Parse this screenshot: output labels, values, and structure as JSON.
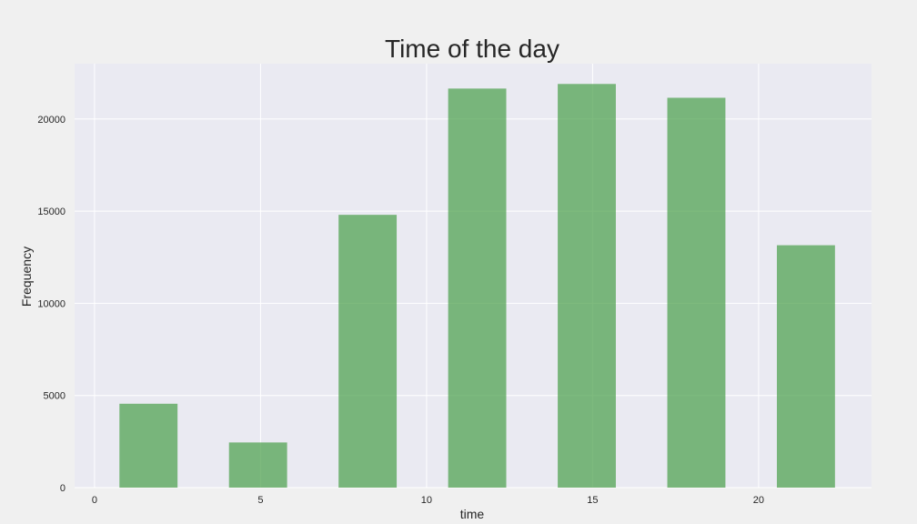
{
  "colors": {
    "background": "#f0f0f0",
    "plot_background": "#eaeaf2",
    "grid": "#ffffff",
    "bar": "#4ca14c"
  },
  "chart_data": {
    "type": "bar",
    "title": "Time of the day",
    "xlabel": "time",
    "ylabel": "Frequency",
    "xlim": [
      -0.6,
      23.4
    ],
    "ylim": [
      0,
      23000
    ],
    "xticks": [
      0,
      5,
      10,
      15,
      20
    ],
    "yticks": [
      0,
      5000,
      10000,
      15000,
      20000
    ],
    "grid": true,
    "legend": "none",
    "bins": [
      {
        "x0": 0.75,
        "x1": 2.5,
        "value": 4550
      },
      {
        "x0": 4.05,
        "x1": 5.8,
        "value": 2450
      },
      {
        "x0": 7.35,
        "x1": 9.1,
        "value": 14800
      },
      {
        "x0": 10.65,
        "x1": 12.4,
        "value": 21650
      },
      {
        "x0": 13.95,
        "x1": 15.7,
        "value": 21900
      },
      {
        "x0": 17.25,
        "x1": 19.0,
        "value": 21150
      },
      {
        "x0": 20.55,
        "x1": 22.3,
        "value": 13150
      }
    ]
  }
}
